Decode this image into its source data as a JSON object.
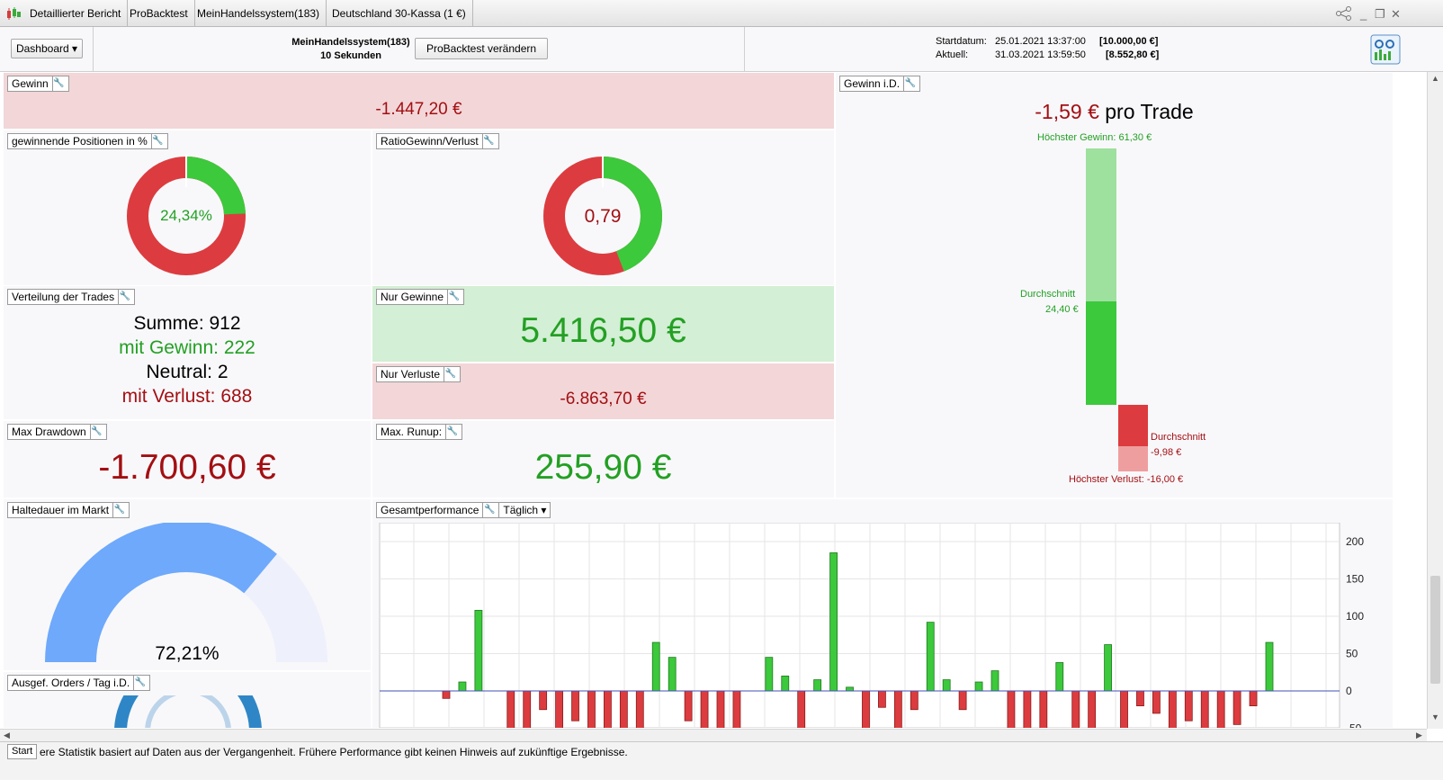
{
  "tabs": [
    "Detaillierter Bericht",
    "ProBacktest",
    "MeinHandelssystem(183)",
    "Deutschland 30-Kassa (1 €)"
  ],
  "header": {
    "dashboard_label": "Dashboard ▾",
    "system_name": "MeinHandelssystem(183)",
    "timeframe": "10 Sekunden",
    "modify_button": "ProBacktest verändern",
    "start_label": "Startdatum:",
    "start_date": "25.01.2021 13:37:00",
    "start_value": "[10.000,00 €]",
    "current_label": "Aktuell:",
    "current_date": "31.03.2021 13:59:50",
    "current_value": "[8.552,80 €]"
  },
  "colors": {
    "positive": "#23a023",
    "negative": "#a30f12",
    "bar_green": "#3cc93c",
    "bar_red": "#dc3c3f",
    "gauge_blue": "#6ea9fb"
  },
  "panels": {
    "gewinn": {
      "title": "Gewinn",
      "value": "-1.447,20 €"
    },
    "winning_positions": {
      "title": "gewinnende Positionen in %",
      "value": "24,34%",
      "fraction": 0.2434
    },
    "ratio": {
      "title": "RatioGewinn/Verlust",
      "value": "0,79",
      "fraction": 0.4413
    },
    "distribution": {
      "title": "Verteilung der Trades",
      "sum": "Summe: 912",
      "wins": "mit Gewinn: 222",
      "neutral": "Neutral: 2",
      "losses": "mit Verlust: 688"
    },
    "only_gains": {
      "title": "Nur Gewinne",
      "value": "5.416,50 €"
    },
    "only_losses": {
      "title": "Nur Verluste",
      "value": "-6.863,70 €"
    },
    "max_drawdown": {
      "title": "Max Drawdown",
      "value": "-1.700,60 €"
    },
    "max_runup": {
      "title": "Max. Runup:",
      "value": "255,90 €"
    },
    "holding": {
      "title": "Haltedauer im Markt",
      "value": "72,21%",
      "fraction": 0.7221
    },
    "orders": {
      "title": "Ausgef. Orders / Tag i.D."
    },
    "gain_avg": {
      "title": "Gewinn i.D.",
      "per_trade_value": "-1,59 €",
      "per_trade_label": "pro Trade",
      "max_gain": "Höchster Gewinn: 61,30 €",
      "avg_gain_label": "Durchschnitt",
      "avg_gain_value": "24,40 €",
      "avg_loss_label": "Durchschnitt",
      "avg_loss_value": "-9,98 €",
      "max_loss": "Höchster Verlust: -16,00 €"
    },
    "performance": {
      "title": "Gesamtperformance",
      "period": "Täglich ▾"
    }
  },
  "status_text": "ere Statistik basiert auf Daten aus der Vergangenheit. Frühere Performance gibt keinen Hinweis auf zukünftige Ergebnisse.",
  "start_tab": "Start",
  "chart_data": {
    "type": "bar",
    "ylim": [
      -50,
      220
    ],
    "yticks": [
      "200",
      "150",
      "100",
      "50",
      "0",
      "-50"
    ],
    "values": [
      -10,
      12,
      108,
      0,
      -55,
      -55,
      -25,
      -55,
      -40,
      -55,
      -55,
      -55,
      -55,
      65,
      45,
      -40,
      -55,
      -55,
      -55,
      0,
      45,
      20,
      -55,
      15,
      185,
      5,
      -55,
      -22,
      -55,
      -25,
      92,
      15,
      -25,
      12,
      27,
      -55,
      -55,
      -55,
      38,
      -55,
      -55,
      62,
      -55,
      -20,
      -30,
      -55,
      -40,
      -55,
      -55,
      -45,
      -20,
      65
    ]
  }
}
